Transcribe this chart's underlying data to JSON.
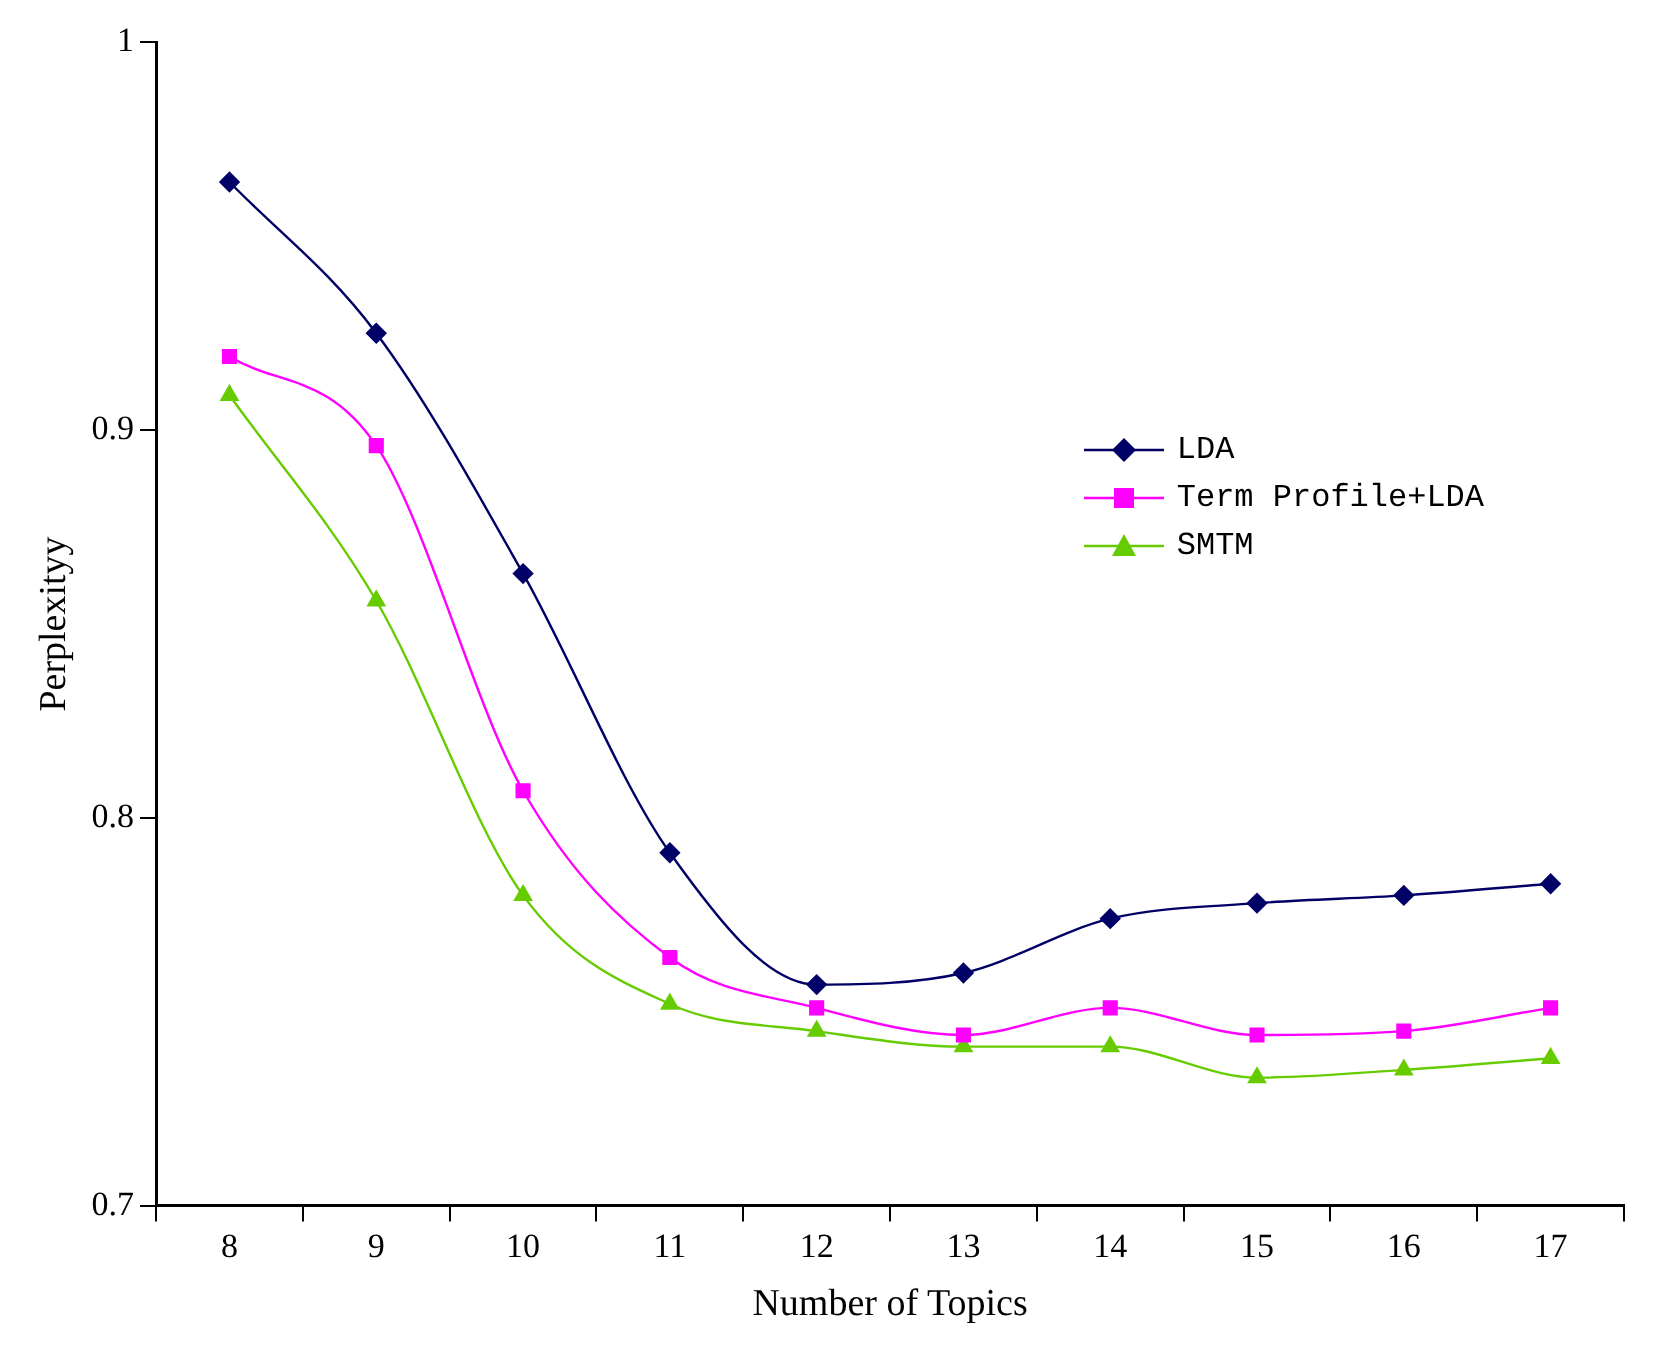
{
  "chart_data": {
    "type": "line",
    "xlabel": "Number of Topics",
    "ylabel": "Perplexityy",
    "categories": [
      "8",
      "9",
      "10",
      "11",
      "12",
      "13",
      "14",
      "15",
      "16",
      "17"
    ],
    "series": [
      {
        "name": "LDA",
        "color": "#000066",
        "marker": "diamond",
        "values": [
          0.964,
          0.925,
          0.863,
          0.791,
          0.757,
          0.76,
          0.774,
          0.778,
          0.78,
          0.783
        ]
      },
      {
        "name": "Term Profile+LDA",
        "color": "#ff00ff",
        "marker": "square",
        "values": [
          0.919,
          0.896,
          0.807,
          0.764,
          0.751,
          0.744,
          0.751,
          0.744,
          0.745,
          0.751
        ]
      },
      {
        "name": "SMTM",
        "color": "#66cc00",
        "marker": "triangle",
        "values": [
          0.909,
          0.856,
          0.78,
          0.752,
          0.745,
          0.741,
          0.741,
          0.733,
          0.735,
          0.738
        ]
      }
    ],
    "ylim": [
      0.7,
      1
    ],
    "yticks": [
      0.7,
      0.8,
      0.9,
      1
    ],
    "grid": false,
    "legend": "right",
    "line_style": "solid"
  }
}
